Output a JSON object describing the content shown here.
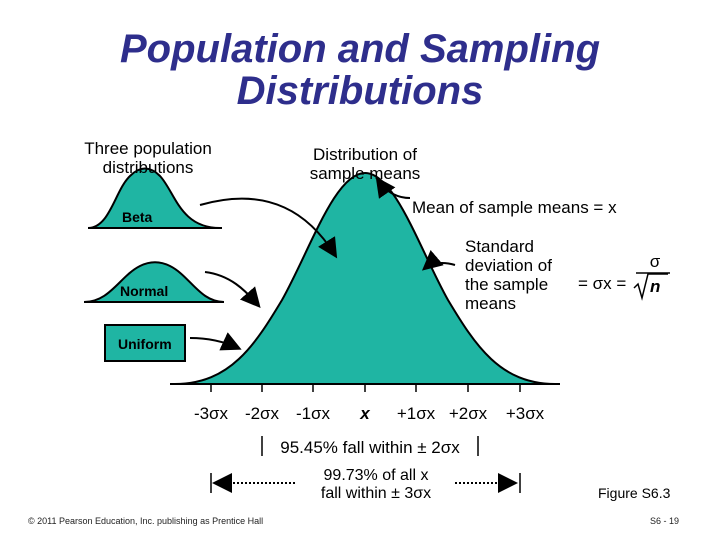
{
  "title_line1": "Population and Sampling",
  "title_line2": "Distributions",
  "pop_dist_heading": "Three population distributions",
  "sample_means_heading": "Distribution of sample means",
  "mean_of_means": "Mean of sample means = x",
  "std_dev_label": "Standard deviation of the sample means",
  "formula_eq": "= σx =",
  "formula_num": "σ",
  "formula_den": "n",
  "beta_label": "Beta",
  "normal_label": "Normal",
  "uniform_label": "Uniform",
  "axis_ticks": [
    "-3σx",
    "-2σx",
    "-1σx",
    "x",
    "+1σx",
    "+2σx",
    "+3σx"
  ],
  "range_95": "95.45% fall within ± 2σx",
  "range_99_line1": "99.73% of all x",
  "range_99_line2": "fall within ± 3σx",
  "figure_label": "Figure S6.3",
  "copyright": "© 2011 Pearson Education, Inc. publishing as Prentice Hall",
  "page_number": "S6 - 19",
  "colors": {
    "title": "#2e2e8c",
    "fill": "#1fb5a3",
    "stroke": "#000000"
  }
}
